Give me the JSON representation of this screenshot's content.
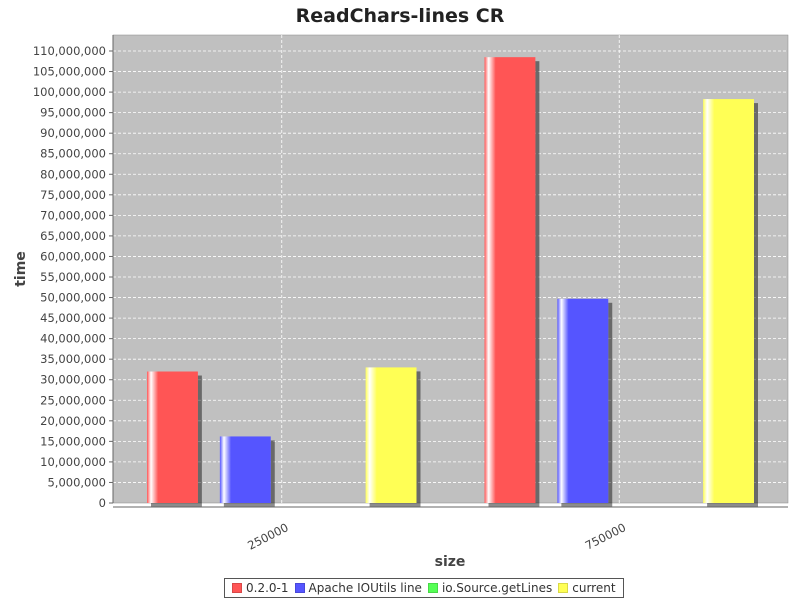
{
  "chart_data": {
    "type": "bar",
    "title": "ReadChars-lines CR",
    "xlabel": "size",
    "ylabel": "time",
    "categories": [
      "250000",
      "750000"
    ],
    "series": [
      {
        "name": "0.2.0-1",
        "color": "#ff5555",
        "values": [
          32000000,
          108500000
        ]
      },
      {
        "name": "Apache IOUtils line",
        "color": "#5555ff",
        "values": [
          16200000,
          49700000
        ]
      },
      {
        "name": "io.Source.getLines",
        "color": "#55ff55",
        "values": [
          0,
          0
        ]
      },
      {
        "name": "current",
        "color": "#ffff55",
        "values": [
          33000000,
          98300000
        ]
      }
    ],
    "ylim": [
      0,
      112000000
    ],
    "yticks": [
      "0",
      "5,000,000",
      "10,000,000",
      "15,000,000",
      "20,000,000",
      "25,000,000",
      "30,000,000",
      "35,000,000",
      "40,000,000",
      "45,000,000",
      "50,000,000",
      "55,000,000",
      "60,000,000",
      "65,000,000",
      "70,000,000",
      "75,000,000",
      "80,000,000",
      "85,000,000",
      "90,000,000",
      "95,000,000",
      "100,000,000",
      "105,000,000",
      "110,000,000"
    ],
    "grid": true,
    "legend_position": "bottom",
    "plot_background": "#c0c0c0"
  }
}
